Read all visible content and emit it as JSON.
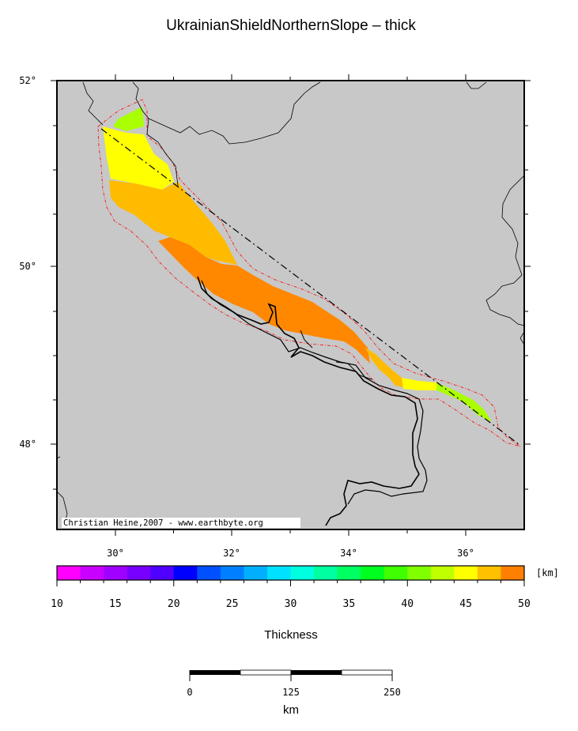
{
  "title": "UkrainianShieldNorthernSlope – thick",
  "map": {
    "lon_ticks": [
      "30°",
      "32°",
      "34°",
      "36°"
    ],
    "lat_ticks": [
      "52°",
      "50°",
      "48°"
    ],
    "credit": "Christian Heine,2007 - www.earthbyte.org",
    "background_color": "#c8c8c8",
    "profile_line": "dash-dot",
    "outline_color": "#ff0000",
    "thickness_classes_km": [
      {
        "name": "lime",
        "color": "#aaff00",
        "km": 41
      },
      {
        "name": "yellow",
        "color": "#ffff00",
        "km": 43
      },
      {
        "name": "orange-yellow",
        "color": "#ffbb00",
        "km": 45.5
      },
      {
        "name": "orange",
        "color": "#ff8800",
        "km": 47.5
      }
    ]
  },
  "colorbar": {
    "unit": "[km]",
    "label": "Thickness",
    "tick_labels": [
      "10",
      "15",
      "20",
      "25",
      "30",
      "35",
      "40",
      "45",
      "50"
    ],
    "min": 10,
    "max": 50,
    "step": 2,
    "colors": [
      "#ff00ff",
      "#c800ff",
      "#a000ff",
      "#7800ff",
      "#5000ff",
      "#0000ff",
      "#0050ff",
      "#0080ff",
      "#00b0ff",
      "#00e0ff",
      "#00ffe0",
      "#00ffa0",
      "#00ff60",
      "#00ff20",
      "#40ff00",
      "#80ff00",
      "#c0ff00",
      "#ffff00",
      "#ffc000",
      "#ff8000",
      "#ff4000"
    ]
  },
  "scalebar": {
    "unit": "km",
    "tick_labels": [
      "0",
      "125",
      "250"
    ]
  }
}
